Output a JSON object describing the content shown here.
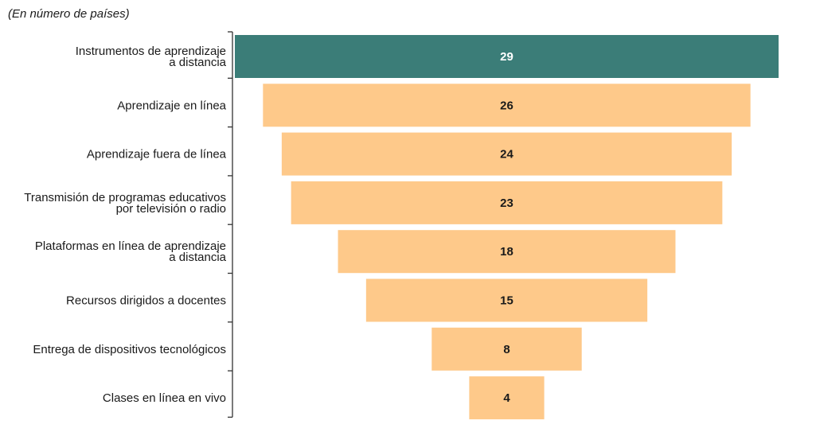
{
  "subtitle": "(En número de países)",
  "colors": {
    "highlight_bar": "#3b7d78",
    "other_bars": "#fec98a",
    "highlight_label": "#ffffff",
    "other_label": "#1a1a1a",
    "axis": "#333333"
  },
  "chart_data": {
    "type": "bar",
    "orientation": "horizontal-funnel",
    "categories": [
      [
        "Instrumentos de aprendizaje",
        "a distancia"
      ],
      [
        "Aprendizaje en línea"
      ],
      [
        "Aprendizaje fuera de línea"
      ],
      [
        "Transmisión de programas educativos",
        "por televisión o radio"
      ],
      [
        "Plataformas en línea de aprendizaje",
        "a distancia"
      ],
      [
        "Recursos dirigidos a docentes"
      ],
      [
        "Entrega de dispositivos tecnológicos"
      ],
      [
        "Clases en línea en vivo"
      ]
    ],
    "values": [
      29,
      26,
      24,
      23,
      18,
      15,
      8,
      4
    ],
    "highlight_index": 0,
    "title": "",
    "xlabel": "",
    "ylabel": "",
    "grid": false,
    "legend": "none"
  }
}
